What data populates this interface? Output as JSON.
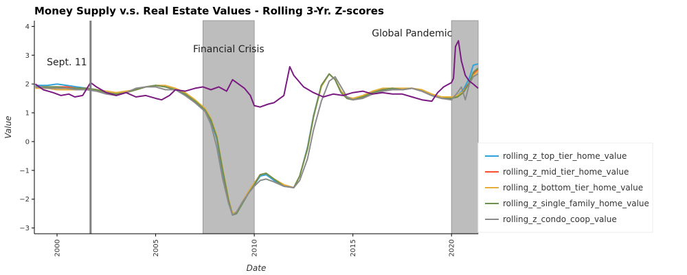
{
  "chart_data": {
    "type": "line",
    "title": "Money Supply v.s. Real Estate Values - Rolling 3-Yr. Z-scores",
    "xlabel": "Date",
    "ylabel": "Value",
    "xlim": [
      1998.85,
      2021.35
    ],
    "ylim": [
      -3.2,
      4.2
    ],
    "xticks": [
      "2000",
      "2005",
      "2010",
      "2015",
      "2020"
    ],
    "yticks": [
      "−3",
      "−2",
      "−1",
      "0",
      "1",
      "2",
      "3",
      "4"
    ],
    "grid": false,
    "legend_position": "right",
    "vline": {
      "x": 2001.7,
      "color": "#808080"
    },
    "shaded_regions": [
      {
        "x0": 2007.4,
        "x1": 2010.0,
        "label": "Financial Crisis"
      },
      {
        "x0": 2020.0,
        "x1": 2021.35,
        "label": "Global Pandemic"
      }
    ],
    "annotations": [
      {
        "text": "Sept. 11",
        "x": 2000.5,
        "y": 2.65
      },
      {
        "text": "Financial Crisis",
        "x": 2008.7,
        "y": 3.1
      },
      {
        "text": "Global Pandemic",
        "x": 2018.0,
        "y": 3.65
      }
    ],
    "money_series": {
      "name": "",
      "color": "#7a1a80",
      "x": [
        1998.9,
        1999.3,
        1999.8,
        2000.2,
        2000.6,
        2000.9,
        2001.3,
        2001.7,
        2002.0,
        2002.5,
        2003.0,
        2003.5,
        2004.0,
        2004.5,
        2005.0,
        2005.3,
        2005.7,
        2006.0,
        2006.5,
        2007.0,
        2007.4,
        2007.8,
        2008.2,
        2008.6,
        2008.9,
        2009.2,
        2009.5,
        2009.8,
        2010.0,
        2010.3,
        2010.7,
        2011.0,
        2011.5,
        2011.8,
        2012.0,
        2012.5,
        2013.0,
        2013.5,
        2014.0,
        2014.5,
        2015.0,
        2015.5,
        2016.0,
        2016.5,
        2017.0,
        2017.5,
        2018.0,
        2018.5,
        2019.0,
        2019.3,
        2019.6,
        2020.0,
        2020.1,
        2020.2,
        2020.35,
        2020.5,
        2020.7,
        2020.9,
        2021.1,
        2021.35
      ],
      "values": [
        2.0,
        1.8,
        1.7,
        1.6,
        1.65,
        1.55,
        1.6,
        2.05,
        1.9,
        1.7,
        1.6,
        1.7,
        1.55,
        1.6,
        1.5,
        1.45,
        1.6,
        1.8,
        1.75,
        1.85,
        1.9,
        1.8,
        1.9,
        1.75,
        2.15,
        2.0,
        1.85,
        1.6,
        1.25,
        1.2,
        1.3,
        1.35,
        1.6,
        2.6,
        2.3,
        1.9,
        1.7,
        1.55,
        1.65,
        1.6,
        1.7,
        1.75,
        1.65,
        1.7,
        1.65,
        1.65,
        1.55,
        1.45,
        1.4,
        1.7,
        1.9,
        2.05,
        2.2,
        3.3,
        3.5,
        2.8,
        2.3,
        2.1,
        2.0,
        1.85
      ]
    },
    "series": [
      {
        "name": "rolling_z_top_tier_home_value",
        "color": "#30a2da",
        "x": [
          1998.9,
          1999.5,
          2000.0,
          2000.5,
          2001.0,
          2001.5,
          2002.0,
          2002.5,
          2003.0,
          2003.5,
          2004.0,
          2004.5,
          2005.0,
          2005.5,
          2006.0,
          2006.5,
          2007.0,
          2007.5,
          2007.8,
          2008.1,
          2008.4,
          2008.7,
          2008.9,
          2009.1,
          2009.4,
          2009.7,
          2010.0,
          2010.3,
          2010.6,
          2011.0,
          2011.5,
          2012.0,
          2012.3,
          2012.7,
          2013.0,
          2013.4,
          2013.8,
          2014.1,
          2014.4,
          2014.7,
          2015.0,
          2015.5,
          2016.0,
          2016.5,
          2017.0,
          2017.5,
          2018.0,
          2018.5,
          2019.0,
          2019.5,
          2020.0,
          2020.3,
          2020.6,
          2020.9,
          2021.1,
          2021.35
        ],
        "values": [
          1.95,
          1.95,
          2.0,
          1.95,
          1.9,
          1.85,
          1.8,
          1.7,
          1.6,
          1.7,
          1.8,
          1.9,
          1.95,
          1.9,
          1.8,
          1.65,
          1.35,
          1.05,
          0.7,
          0.1,
          -1.1,
          -2.1,
          -2.55,
          -2.5,
          -2.15,
          -1.8,
          -1.5,
          -1.2,
          -1.15,
          -1.35,
          -1.55,
          -1.6,
          -1.2,
          -0.2,
          0.9,
          1.95,
          2.35,
          2.15,
          1.7,
          1.5,
          1.45,
          1.55,
          1.7,
          1.8,
          1.85,
          1.8,
          1.85,
          1.75,
          1.6,
          1.5,
          1.5,
          1.6,
          1.8,
          2.2,
          2.65,
          2.7
        ]
      },
      {
        "name": "rolling_z_mid_tier_home_value",
        "color": "#fc4f30",
        "x": [
          1998.9,
          1999.5,
          2000.0,
          2000.5,
          2001.0,
          2001.5,
          2002.0,
          2002.5,
          2003.0,
          2003.5,
          2004.0,
          2004.5,
          2005.0,
          2005.5,
          2006.0,
          2006.5,
          2007.0,
          2007.5,
          2007.8,
          2008.1,
          2008.4,
          2008.7,
          2008.9,
          2009.1,
          2009.4,
          2009.7,
          2010.0,
          2010.3,
          2010.6,
          2011.0,
          2011.5,
          2012.0,
          2012.3,
          2012.7,
          2013.0,
          2013.4,
          2013.8,
          2014.1,
          2014.4,
          2014.7,
          2015.0,
          2015.5,
          2016.0,
          2016.5,
          2017.0,
          2017.5,
          2018.0,
          2018.5,
          2019.0,
          2019.5,
          2020.0,
          2020.3,
          2020.6,
          2020.9,
          2021.1,
          2021.35
        ],
        "values": [
          1.9,
          1.9,
          1.9,
          1.9,
          1.85,
          1.85,
          1.8,
          1.7,
          1.65,
          1.7,
          1.8,
          1.9,
          1.95,
          1.9,
          1.8,
          1.65,
          1.4,
          1.1,
          0.75,
          0.15,
          -1.0,
          -2.05,
          -2.5,
          -2.45,
          -2.1,
          -1.75,
          -1.45,
          -1.15,
          -1.1,
          -1.3,
          -1.5,
          -1.6,
          -1.2,
          -0.25,
          0.85,
          1.95,
          2.35,
          2.15,
          1.7,
          1.5,
          1.45,
          1.55,
          1.7,
          1.8,
          1.85,
          1.8,
          1.85,
          1.75,
          1.6,
          1.5,
          1.5,
          1.55,
          1.75,
          2.05,
          2.35,
          2.5
        ]
      },
      {
        "name": "rolling_z_bottom_tier_home_value",
        "color": "#e5ae38",
        "x": [
          1998.9,
          1999.5,
          2000.0,
          2000.5,
          2001.0,
          2001.5,
          2002.0,
          2002.5,
          2003.0,
          2003.5,
          2004.0,
          2004.5,
          2005.0,
          2005.5,
          2006.0,
          2006.5,
          2007.0,
          2007.5,
          2007.8,
          2008.1,
          2008.4,
          2008.7,
          2008.9,
          2009.1,
          2009.4,
          2009.7,
          2010.0,
          2010.3,
          2010.6,
          2011.0,
          2011.5,
          2012.0,
          2012.3,
          2012.7,
          2013.0,
          2013.4,
          2013.8,
          2014.1,
          2014.4,
          2014.7,
          2015.0,
          2015.5,
          2016.0,
          2016.5,
          2017.0,
          2017.5,
          2018.0,
          2018.5,
          2019.0,
          2019.5,
          2020.0,
          2020.3,
          2020.6,
          2020.9,
          2021.1,
          2021.35
        ],
        "values": [
          1.85,
          1.85,
          1.8,
          1.8,
          1.8,
          1.85,
          1.8,
          1.75,
          1.7,
          1.75,
          1.8,
          1.9,
          1.95,
          1.95,
          1.85,
          1.7,
          1.45,
          1.15,
          0.8,
          0.2,
          -0.95,
          -2.0,
          -2.5,
          -2.45,
          -2.1,
          -1.75,
          -1.45,
          -1.15,
          -1.1,
          -1.3,
          -1.5,
          -1.6,
          -1.2,
          -0.25,
          0.85,
          1.9,
          2.35,
          2.15,
          1.75,
          1.55,
          1.5,
          1.6,
          1.75,
          1.85,
          1.85,
          1.85,
          1.85,
          1.8,
          1.65,
          1.55,
          1.55,
          1.6,
          1.75,
          2.0,
          2.3,
          2.45
        ]
      },
      {
        "name": "rolling_z_single_family_home_value",
        "color": "#6d904f",
        "x": [
          1998.9,
          1999.5,
          2000.0,
          2000.5,
          2001.0,
          2001.5,
          2002.0,
          2002.5,
          2003.0,
          2003.5,
          2004.0,
          2004.5,
          2005.0,
          2005.5,
          2006.0,
          2006.5,
          2007.0,
          2007.5,
          2007.8,
          2008.1,
          2008.4,
          2008.7,
          2008.9,
          2009.1,
          2009.4,
          2009.7,
          2010.0,
          2010.3,
          2010.6,
          2011.0,
          2011.5,
          2012.0,
          2012.3,
          2012.7,
          2013.0,
          2013.4,
          2013.8,
          2014.1,
          2014.4,
          2014.7,
          2015.0,
          2015.5,
          2016.0,
          2016.5,
          2017.0,
          2017.5,
          2018.0,
          2018.5,
          2019.0,
          2019.5,
          2020.0,
          2020.3,
          2020.6,
          2020.9,
          2021.1,
          2021.35
        ],
        "values": [
          1.9,
          1.9,
          1.9,
          1.85,
          1.85,
          1.85,
          1.8,
          1.7,
          1.65,
          1.7,
          1.8,
          1.9,
          1.95,
          1.9,
          1.8,
          1.65,
          1.4,
          1.1,
          0.75,
          0.15,
          -1.0,
          -2.05,
          -2.55,
          -2.5,
          -2.15,
          -1.8,
          -1.5,
          -1.15,
          -1.1,
          -1.3,
          -1.55,
          -1.6,
          -1.2,
          -0.25,
          0.85,
          1.95,
          2.35,
          2.15,
          1.7,
          1.5,
          1.45,
          1.55,
          1.7,
          1.8,
          1.85,
          1.8,
          1.85,
          1.75,
          1.6,
          1.5,
          1.5,
          1.55,
          1.7,
          2.05,
          2.4,
          2.55
        ]
      },
      {
        "name": "rolling_z_condo_coop_value",
        "color": "#8b8b8b",
        "x": [
          1998.9,
          1999.5,
          2000.0,
          2000.5,
          2001.0,
          2001.5,
          2002.0,
          2002.5,
          2003.0,
          2003.5,
          2004.0,
          2004.5,
          2005.0,
          2005.5,
          2006.0,
          2006.5,
          2007.0,
          2007.5,
          2007.8,
          2008.1,
          2008.4,
          2008.7,
          2008.9,
          2009.1,
          2009.4,
          2009.7,
          2010.0,
          2010.3,
          2010.6,
          2011.0,
          2011.5,
          2012.0,
          2012.3,
          2012.7,
          2013.0,
          2013.4,
          2013.8,
          2014.1,
          2014.4,
          2014.7,
          2015.0,
          2015.5,
          2016.0,
          2016.5,
          2017.0,
          2017.5,
          2018.0,
          2018.5,
          2019.0,
          2019.5,
          2020.0,
          2020.3,
          2020.5,
          2020.7,
          2020.9,
          2021.1,
          2021.35
        ],
        "values": [
          1.9,
          1.85,
          1.85,
          1.85,
          1.8,
          1.8,
          1.75,
          1.65,
          1.6,
          1.7,
          1.85,
          1.9,
          1.9,
          1.8,
          1.8,
          1.6,
          1.35,
          1.05,
          0.6,
          -0.2,
          -1.3,
          -2.15,
          -2.55,
          -2.45,
          -2.1,
          -1.8,
          -1.55,
          -1.35,
          -1.3,
          -1.4,
          -1.55,
          -1.6,
          -1.35,
          -0.6,
          0.4,
          1.4,
          2.1,
          2.25,
          1.9,
          1.55,
          1.45,
          1.5,
          1.65,
          1.75,
          1.8,
          1.8,
          1.85,
          1.75,
          1.6,
          1.5,
          1.45,
          1.7,
          1.9,
          1.45,
          2.0,
          2.25,
          2.35
        ]
      }
    ]
  }
}
